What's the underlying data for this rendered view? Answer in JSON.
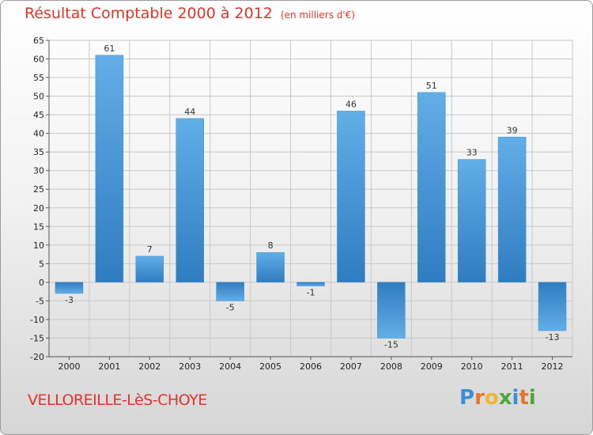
{
  "title": "Résultat Comptable 2000 à 2012",
  "subtitle": "(en milliers d'€)",
  "town": "VELLOREILLE-LèS-CHOYE",
  "logo": {
    "letters": [
      "P",
      "r",
      "o",
      "x",
      "i",
      "t",
      "i"
    ],
    "colors": [
      "#3a8fd6",
      "#e8732a",
      "#f2b52e",
      "#4aa83a",
      "#3a8fd6",
      "#e8732a",
      "#4aa83a"
    ]
  },
  "colors": {
    "bar": "#3d93d8",
    "barLight": "#6fb4ea",
    "barDark": "#2f79b8",
    "grid": "#c8c8c8",
    "title": "#e0342a"
  },
  "chart_data": {
    "type": "bar",
    "title": "Résultat Comptable 2000 à 2012",
    "ylabel": "en milliers d'€",
    "xlabel": "",
    "categories": [
      "2000",
      "2001",
      "2002",
      "2003",
      "2004",
      "2005",
      "2006",
      "2007",
      "2008",
      "2009",
      "2010",
      "2011",
      "2012"
    ],
    "values": [
      -3,
      61,
      7,
      44,
      -5,
      8,
      -1,
      46,
      -15,
      51,
      33,
      39,
      -13
    ],
    "data_labels": [
      "-3",
      "61",
      "7",
      "44",
      "-5",
      "8",
      "-1",
      "46",
      "-15",
      "51",
      "33",
      "39",
      "-13"
    ],
    "ylim": [
      -20,
      65
    ],
    "yticks": [
      -20,
      -15,
      -10,
      -5,
      0,
      5,
      10,
      15,
      20,
      25,
      30,
      35,
      40,
      45,
      50,
      55,
      60,
      65
    ],
    "grid": true
  }
}
